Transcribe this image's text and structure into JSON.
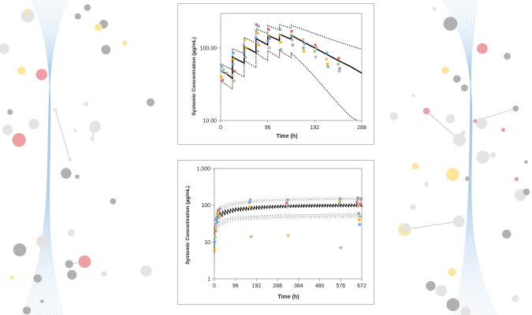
{
  "colors": {
    "mean_line": "#000000",
    "ci_line": "#000000",
    "molecule_gray": "#b0b0b0",
    "molecule_yellow": "#fde59a",
    "molecule_pink": "#ef9ea4",
    "wave_blue": "#9bc4e6",
    "observed_point_palette": [
      "#f4b400",
      "#6fa8dc",
      "#93c47d",
      "#e06666",
      "#b4a7d6",
      "#999999",
      "#f6b26b",
      "#76a5af"
    ]
  },
  "chart_data": [
    {
      "type": "scatter",
      "title": "",
      "xlabel": "Time (h)",
      "ylabel": "Systemic Concentration (µg/mL)",
      "yscale": "log",
      "xlim": [
        0,
        288
      ],
      "ylim": [
        10,
        300
      ],
      "xticks": [
        0,
        96,
        192,
        288
      ],
      "xtick_labels": [
        "0",
        "96",
        "192",
        "288"
      ],
      "yticks": [
        10,
        100
      ],
      "ytick_labels": [
        "10.00",
        "100.00"
      ],
      "grid": false,
      "legend": "none",
      "series": [
        {
          "style": "solid",
          "points": [
            [
              0,
              48
            ],
            [
              12,
              44
            ],
            [
              24,
              38
            ],
            [
              24,
              75
            ],
            [
              36,
              68
            ],
            [
              48,
              62
            ],
            [
              48,
              105
            ],
            [
              60,
              95
            ],
            [
              72,
              86
            ],
            [
              72,
              135
            ],
            [
              84,
              122
            ],
            [
              96,
              110
            ],
            [
              96,
              150
            ],
            [
              108,
              138
            ],
            [
              120,
              127
            ],
            [
              120,
              155
            ],
            [
              132,
              143
            ],
            [
              144,
              132
            ],
            [
              144,
              150
            ],
            [
              168,
              122
            ],
            [
              192,
              100
            ],
            [
              216,
              82
            ],
            [
              240,
              67
            ],
            [
              264,
              56
            ],
            [
              288,
              45
            ]
          ]
        },
        {
          "style": "dotted",
          "points": [
            [
              0,
              60
            ],
            [
              12,
              55
            ],
            [
              24,
              50
            ],
            [
              24,
              98
            ],
            [
              36,
              90
            ],
            [
              48,
              84
            ],
            [
              48,
              140
            ],
            [
              60,
              128
            ],
            [
              72,
              118
            ],
            [
              72,
              185
            ],
            [
              84,
              170
            ],
            [
              96,
              158
            ],
            [
              96,
              205
            ],
            [
              108,
              190
            ],
            [
              120,
              178
            ],
            [
              120,
              210
            ],
            [
              132,
              198
            ],
            [
              144,
              188
            ],
            [
              144,
              205
            ],
            [
              168,
              180
            ],
            [
              192,
              158
            ],
            [
              216,
              138
            ],
            [
              240,
              122
            ],
            [
              264,
              108
            ],
            [
              288,
              96
            ]
          ]
        },
        {
          "style": "dotted",
          "points": [
            [
              0,
              35
            ],
            [
              12,
              31
            ],
            [
              24,
              27
            ],
            [
              24,
              50
            ],
            [
              36,
              44
            ],
            [
              48,
              40
            ],
            [
              48,
              68
            ],
            [
              60,
              60
            ],
            [
              72,
              54
            ],
            [
              72,
              85
            ],
            [
              84,
              75
            ],
            [
              96,
              67
            ],
            [
              96,
              92
            ],
            [
              108,
              82
            ],
            [
              120,
              73
            ],
            [
              120,
              92
            ],
            [
              132,
              82
            ],
            [
              144,
              74
            ],
            [
              144,
              85
            ],
            [
              168,
              60
            ],
            [
              192,
              40
            ],
            [
              216,
              26
            ],
            [
              240,
              17
            ],
            [
              264,
              11.5
            ],
            [
              278,
              10
            ]
          ]
        },
        {
          "style": "scatter",
          "points": [
            [
              1,
              40
            ],
            [
              2,
              55
            ],
            [
              3,
              48
            ],
            [
              4,
              36
            ],
            [
              6,
              50
            ],
            [
              12,
              45
            ],
            [
              23,
              42
            ],
            [
              25,
              60
            ],
            [
              26,
              70
            ],
            [
              26,
              85
            ],
            [
              27,
              35
            ],
            [
              28,
              48
            ],
            [
              47,
              110
            ],
            [
              48,
              90
            ],
            [
              49,
              130
            ],
            [
              50,
              75
            ],
            [
              51,
              100
            ],
            [
              72,
              140
            ],
            [
              73,
              175
            ],
            [
              73,
              210
            ],
            [
              74,
              120
            ],
            [
              75,
              90
            ],
            [
              76,
              160
            ],
            [
              77,
              200
            ],
            [
              78,
              110
            ],
            [
              96,
              125
            ],
            [
              97,
              150
            ],
            [
              98,
              180
            ],
            [
              99,
              100
            ],
            [
              100,
              135
            ],
            [
              120,
              150
            ],
            [
              121,
              180
            ],
            [
              122,
              120
            ],
            [
              123,
              95
            ],
            [
              144,
              150
            ],
            [
              145,
              170
            ],
            [
              146,
              130
            ],
            [
              147,
              110
            ],
            [
              168,
              130
            ],
            [
              169,
              100
            ],
            [
              170,
              90
            ],
            [
              171,
              115
            ],
            [
              192,
              90
            ],
            [
              193,
              110
            ],
            [
              194,
              75
            ],
            [
              195,
              100
            ],
            [
              216,
              70
            ],
            [
              217,
              85
            ],
            [
              218,
              60
            ],
            [
              219,
              55
            ],
            [
              240,
              60
            ],
            [
              241,
              72
            ],
            [
              242,
              48
            ],
            [
              243,
              52
            ]
          ]
        }
      ]
    },
    {
      "type": "scatter",
      "title": "",
      "xlabel": "Time (h)",
      "ylabel": "Systemic Concentration (µg/mL)",
      "yscale": "log",
      "xlim": [
        0,
        672
      ],
      "ylim": [
        1,
        1000
      ],
      "xticks": [
        0,
        96,
        192,
        288,
        384,
        480,
        576,
        672
      ],
      "xtick_labels": [
        "0",
        "96",
        "192",
        "288",
        "384",
        "480",
        "576",
        "672"
      ],
      "yticks": [
        1,
        10,
        100,
        1000
      ],
      "ytick_labels": [
        "1",
        "10",
        "100",
        "1,000"
      ],
      "grid": false,
      "legend": "none",
      "series": [
        {
          "style": "sawtooth-solid",
          "dose_interval_h": 12,
          "trough": [
            [
              0,
              5
            ],
            [
              6,
              20
            ],
            [
              12,
              35
            ],
            [
              24,
              45
            ],
            [
              48,
              55
            ],
            [
              96,
              68
            ],
            [
              192,
              78
            ],
            [
              288,
              85
            ],
            [
              384,
              88
            ],
            [
              480,
              90
            ],
            [
              576,
              91
            ],
            [
              672,
              92
            ]
          ],
          "peak": [
            [
              0,
              30
            ],
            [
              12,
              55
            ],
            [
              24,
              65
            ],
            [
              48,
              74
            ],
            [
              96,
              85
            ],
            [
              192,
              95
            ],
            [
              288,
              100
            ],
            [
              384,
              104
            ],
            [
              480,
              106
            ],
            [
              576,
              107
            ],
            [
              672,
              108
            ]
          ]
        },
        {
          "style": "sawtooth-dotted",
          "dose_interval_h": 12,
          "trough": [
            [
              0,
              8
            ],
            [
              12,
              50
            ],
            [
              24,
              65
            ],
            [
              48,
              80
            ],
            [
              96,
              100
            ],
            [
              192,
              120
            ],
            [
              288,
              130
            ],
            [
              384,
              135
            ],
            [
              480,
              138
            ],
            [
              576,
              140
            ],
            [
              672,
              140
            ]
          ],
          "peak": [
            [
              0,
              45
            ],
            [
              12,
              80
            ],
            [
              24,
              95
            ],
            [
              48,
              108
            ],
            [
              96,
              125
            ],
            [
              192,
              142
            ],
            [
              288,
              150
            ],
            [
              384,
              155
            ],
            [
              480,
              158
            ],
            [
              576,
              160
            ],
            [
              672,
              160
            ]
          ]
        },
        {
          "style": "sawtooth-dotted",
          "dose_interval_h": 12,
          "trough": [
            [
              0,
              3
            ],
            [
              12,
              20
            ],
            [
              24,
              26
            ],
            [
              48,
              32
            ],
            [
              96,
              38
            ],
            [
              192,
              42
            ],
            [
              288,
              44
            ],
            [
              384,
              45
            ],
            [
              480,
              46
            ],
            [
              576,
              46
            ],
            [
              672,
              46
            ]
          ],
          "peak": [
            [
              0,
              16
            ],
            [
              12,
              32
            ],
            [
              24,
              38
            ],
            [
              48,
              44
            ],
            [
              96,
              50
            ],
            [
              192,
              54
            ],
            [
              288,
              57
            ],
            [
              384,
              58
            ],
            [
              480,
              59
            ],
            [
              576,
              60
            ],
            [
              672,
              60
            ]
          ]
        },
        {
          "style": "scatter",
          "points": [
            [
              1,
              6
            ],
            [
              2,
              10
            ],
            [
              3,
              14
            ],
            [
              4,
              20
            ],
            [
              5,
              30
            ],
            [
              6,
              40
            ],
            [
              8,
              25
            ],
            [
              10,
              45
            ],
            [
              12,
              60
            ],
            [
              14,
              35
            ],
            [
              16,
              55
            ],
            [
              18,
              70
            ],
            [
              20,
              45
            ],
            [
              24,
              80
            ],
            [
              26,
              50
            ],
            [
              160,
              120
            ],
            [
              162,
              90
            ],
            [
              164,
              140
            ],
            [
              168,
              14
            ],
            [
              330,
              115
            ],
            [
              332,
              90
            ],
            [
              334,
              140
            ],
            [
              336,
              15
            ],
            [
              570,
              110
            ],
            [
              572,
              130
            ],
            [
              574,
              150
            ],
            [
              576,
              7
            ],
            [
              650,
              120
            ],
            [
              652,
              140
            ],
            [
              654,
              160
            ],
            [
              656,
              95
            ],
            [
              658,
              60
            ],
            [
              660,
              40
            ],
            [
              662,
              30
            ],
            [
              664,
              50
            ],
            [
              666,
              110
            ],
            [
              668,
              140
            ],
            [
              670,
              150
            ]
          ]
        }
      ]
    }
  ]
}
